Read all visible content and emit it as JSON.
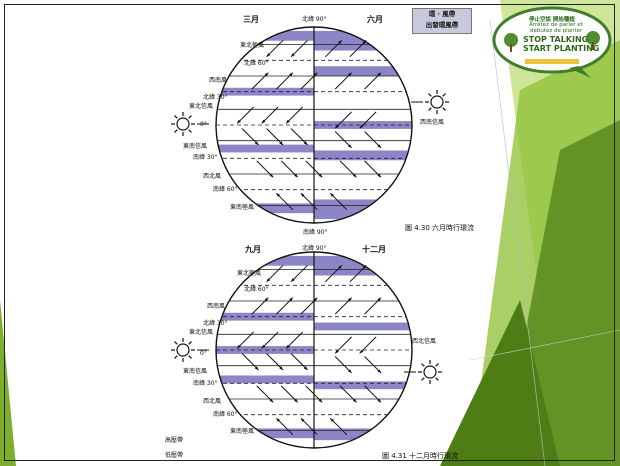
{
  "upper_globe": {
    "month_left": "三月",
    "month_right": "六月",
    "north_pole": "北緯 90°",
    "south_pole": "南緯 90°",
    "left_labels": [
      "東北極風",
      "北緯 60°",
      "西南風",
      "北緯 30°",
      "東北信風",
      "0°",
      "東南信風",
      "南緯 30°",
      "西北風",
      "南緯 60°",
      "東南極風"
    ],
    "right_labels": [
      "西南信風"
    ],
    "caption": "圖 4.30 六月時行環流"
  },
  "lower_globe": {
    "month_left": "九月",
    "month_right": "十二月",
    "north_pole": "北緯 90°",
    "left_labels": [
      "東北極風",
      "北緯 60°",
      "西南風",
      "北緯 30°",
      "東北信風",
      "0°",
      "東南信風",
      "南緯 30°",
      "西北風",
      "南緯 60°",
      "東南極風"
    ],
    "right_labels": [
      "西北信風"
    ],
    "caption": "圖 4.31 十二月時行環流"
  },
  "legend": [
    "高壓帶",
    "低壓帶"
  ],
  "badge": [
    "環 · 風帶",
    "出發環風帶"
  ],
  "logo": {
    "line1": "停止空談 開始種植",
    "line2": "Arrêtez de parler et",
    "line3": "débutez de planter",
    "line4": "STOP TALKING",
    "line5": "START PLANTING"
  },
  "colors": {
    "pressure_band": "#8d86c6",
    "green_dark": "#5a8a1e",
    "green_light": "#a8cf46"
  }
}
